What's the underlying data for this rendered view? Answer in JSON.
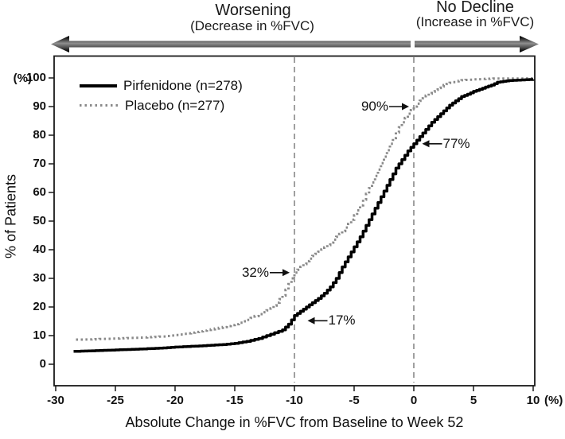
{
  "header": {
    "worsening_title": "Worsening",
    "worsening_subtitle": "(Decrease in %FVC)",
    "no_decline_title": "No Decline",
    "no_decline_subtitle": "(Increase in %FVC)"
  },
  "legend": {
    "items": [
      {
        "label": "Pirfenidone (n=278)",
        "style": "solid",
        "color": "#000000"
      },
      {
        "label": "Placebo (n=277)",
        "style": "dotted",
        "color": "#8a8a8a"
      }
    ]
  },
  "axes": {
    "y_unit": "(%)",
    "y_label": "% of Patients",
    "x_unit": "(%)",
    "x_label": "Absolute Change in %FVC from Baseline to Week 52",
    "x_ticks": [
      -30,
      -25,
      -20,
      -15,
      -10,
      -5,
      0,
      5,
      10
    ],
    "y_ticks": [
      0,
      10,
      20,
      30,
      40,
      50,
      60,
      70,
      80,
      90,
      100
    ]
  },
  "chart_data": {
    "type": "line",
    "subtype": "cumulative-distribution-step",
    "title": "",
    "xlabel": "Absolute Change in %FVC from Baseline to Week 52",
    "ylabel": "% of Patients",
    "xlim": [
      -30,
      10
    ],
    "ylim": [
      0,
      100
    ],
    "grid": false,
    "legend_position": "top-left-inside",
    "reference_lines_x": [
      -10,
      0
    ],
    "series": [
      {
        "name": "Pirfenidone (n=278)",
        "color": "#000000",
        "style": "solid",
        "points": [
          [
            -28.5,
            4.5
          ],
          [
            -27,
            4.7
          ],
          [
            -25,
            5
          ],
          [
            -23,
            5.3
          ],
          [
            -21,
            5.7
          ],
          [
            -20,
            6
          ],
          [
            -18,
            6.4
          ],
          [
            -16,
            6.9
          ],
          [
            -15,
            7.3
          ],
          [
            -14,
            8
          ],
          [
            -13,
            9
          ],
          [
            -12,
            10.5
          ],
          [
            -11,
            12
          ],
          [
            -10.5,
            14
          ],
          [
            -10,
            17
          ],
          [
            -9.5,
            18.5
          ],
          [
            -9,
            20
          ],
          [
            -8.5,
            21.5
          ],
          [
            -8,
            23
          ],
          [
            -7.5,
            24.8
          ],
          [
            -7,
            27
          ],
          [
            -6.5,
            30
          ],
          [
            -6,
            34
          ],
          [
            -5.5,
            37.5
          ],
          [
            -5,
            41
          ],
          [
            -4.5,
            44.5
          ],
          [
            -4,
            48.5
          ],
          [
            -3.5,
            52.5
          ],
          [
            -3,
            56.5
          ],
          [
            -2.5,
            60.5
          ],
          [
            -2,
            64.5
          ],
          [
            -1.5,
            68.5
          ],
          [
            -1,
            71.5
          ],
          [
            -0.5,
            74.5
          ],
          [
            0,
            77
          ],
          [
            0.5,
            79.5
          ],
          [
            1,
            82
          ],
          [
            1.5,
            84.5
          ],
          [
            2,
            86.5
          ],
          [
            2.5,
            88.5
          ],
          [
            3,
            90.5
          ],
          [
            3.5,
            92
          ],
          [
            4,
            93.5
          ],
          [
            4.5,
            94.3
          ],
          [
            5,
            95.3
          ],
          [
            5.5,
            96
          ],
          [
            6,
            96.8
          ],
          [
            6.5,
            97.5
          ],
          [
            7,
            98.5
          ],
          [
            7.5,
            98.8
          ],
          [
            8,
            99.1
          ],
          [
            9,
            99.3
          ],
          [
            10,
            99.5
          ]
        ]
      },
      {
        "name": "Placebo (n=277)",
        "color": "#8a8a8a",
        "style": "dotted",
        "points": [
          [
            -28.3,
            8.6
          ],
          [
            -27,
            8.7
          ],
          [
            -25,
            9
          ],
          [
            -23,
            9.3
          ],
          [
            -21,
            9.7
          ],
          [
            -20,
            10.2
          ],
          [
            -19,
            10.8
          ],
          [
            -18,
            11.5
          ],
          [
            -17,
            12.2
          ],
          [
            -16,
            13
          ],
          [
            -15,
            14
          ],
          [
            -14,
            15.5
          ],
          [
            -13,
            17.5
          ],
          [
            -12,
            19.5
          ],
          [
            -11.5,
            21.5
          ],
          [
            -11,
            24
          ],
          [
            -10.5,
            28
          ],
          [
            -10,
            32
          ],
          [
            -9.5,
            34
          ],
          [
            -9,
            36
          ],
          [
            -8.5,
            37.8
          ],
          [
            -8,
            39.3
          ],
          [
            -7.5,
            40.8
          ],
          [
            -7,
            42.5
          ],
          [
            -6.5,
            44.5
          ],
          [
            -6,
            46.5
          ],
          [
            -5.5,
            49
          ],
          [
            -5,
            52
          ],
          [
            -4.5,
            55.5
          ],
          [
            -4,
            59.5
          ],
          [
            -3.5,
            63.5
          ],
          [
            -3,
            68
          ],
          [
            -2.5,
            72.5
          ],
          [
            -2,
            77
          ],
          [
            -1.5,
            81
          ],
          [
            -1,
            84.5
          ],
          [
            -0.5,
            87.5
          ],
          [
            0,
            90
          ],
          [
            0.5,
            92
          ],
          [
            1,
            93.8
          ],
          [
            1.5,
            95.2
          ],
          [
            2,
            96.5
          ],
          [
            2.5,
            97.5
          ],
          [
            3,
            98.3
          ],
          [
            3.5,
            98.8
          ],
          [
            4,
            99.2
          ],
          [
            5,
            99.5
          ],
          [
            6,
            99.7
          ],
          [
            7,
            99.8
          ],
          [
            8,
            99.8
          ],
          [
            9,
            99.8
          ],
          [
            10,
            99.9
          ]
        ]
      }
    ],
    "annotations": [
      {
        "label": "90%",
        "anchor_x": -0.4,
        "anchor_y": 90,
        "side": "left"
      },
      {
        "label": "77%",
        "anchor_x": 0.7,
        "anchor_y": 77,
        "side": "right"
      },
      {
        "label": "32%",
        "anchor_x": -10.4,
        "anchor_y": 32,
        "side": "left"
      },
      {
        "label": "17%",
        "anchor_x": -8.9,
        "anchor_y": 15.2,
        "side": "right"
      }
    ]
  }
}
